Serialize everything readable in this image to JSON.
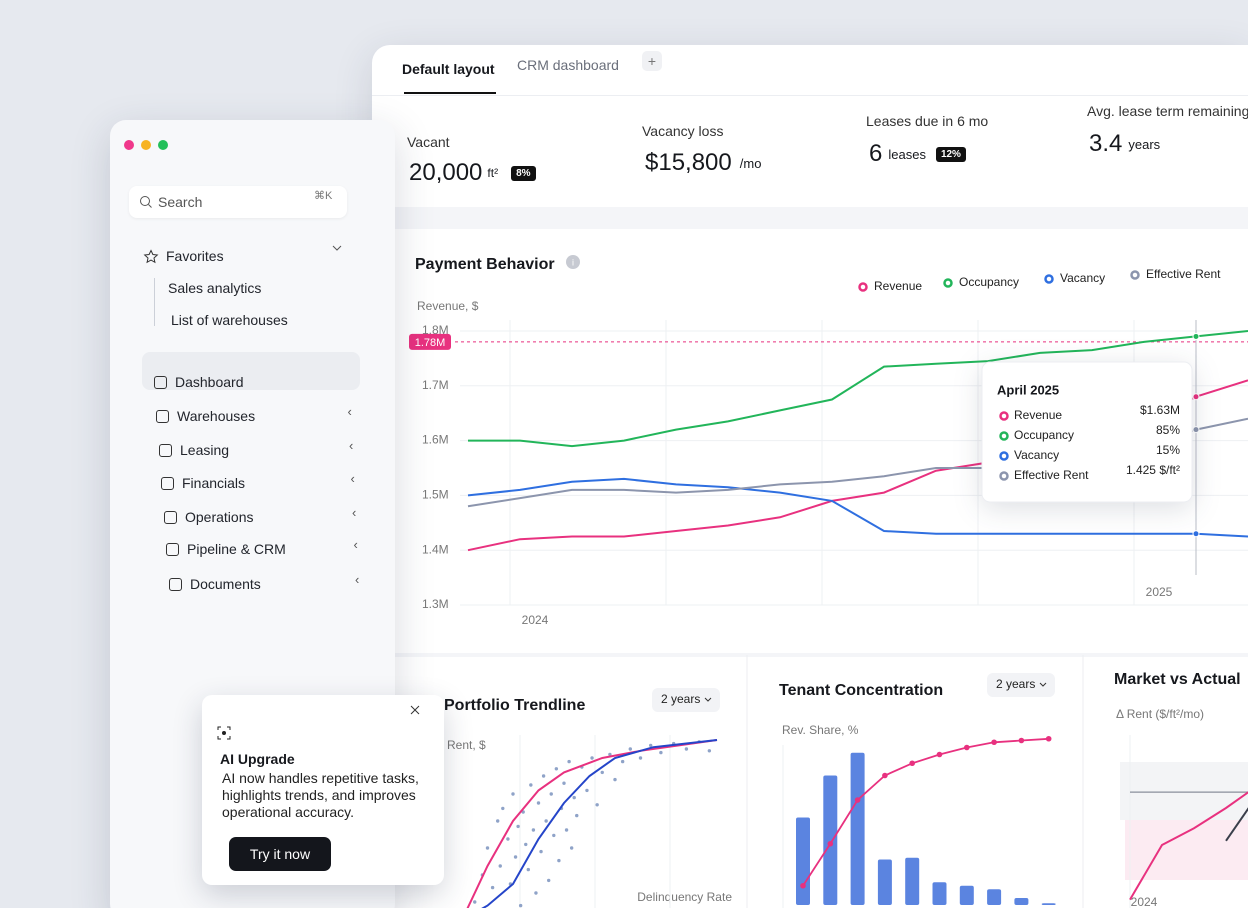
{
  "sidebar": {
    "search": "Search",
    "shortcut": "⌘K",
    "favorites": {
      "title": "Favorites",
      "items": [
        "Sales analytics",
        "List of warehouses"
      ]
    },
    "nav": [
      "Dashboard",
      "Warehouses",
      "Leasing",
      "Financials",
      "Operations",
      "Pipeline & CRM",
      "Documents"
    ]
  },
  "ai_card": {
    "title": "AI Upgrade",
    "text": "AI now handles repetitive tasks, highlights trends, and improves operational accuracy.",
    "button": "Try it now"
  },
  "tabs": [
    "Default layout",
    "CRM dashboard",
    "+"
  ],
  "kpis": [
    {
      "label": "Vacant",
      "value": "20,000",
      "unit": "ft²",
      "badge": "8%"
    },
    {
      "label": "Vacancy loss",
      "value": "$15,800",
      "unit": "/mo"
    },
    {
      "label": "Leases due in 6 mo",
      "value": "6",
      "unit": "leases",
      "badge": "12%"
    },
    {
      "label": "Avg. lease term remaining",
      "value": "3.4",
      "unit": "years"
    }
  ],
  "chart_data": [
    {
      "type": "line",
      "title": "Payment Behavior",
      "y_label": "Revenue, $",
      "categories": [
        null,
        "2024",
        null,
        null,
        null,
        null,
        null,
        null,
        null,
        null,
        null,
        null,
        null,
        "2025",
        null,
        null
      ],
      "series": [
        {
          "name": "Revenue",
          "color": "#e8317f",
          "values": [
            1400000,
            1420000,
            1425000,
            1425000,
            1435000,
            1445000,
            1460000,
            1490000,
            1505000,
            1545000,
            1560000,
            1590000,
            1610000,
            1630000,
            1680000,
            1710000
          ]
        },
        {
          "name": "Occupancy",
          "color": "#22b55a",
          "values": [
            1600000,
            1600000,
            1590000,
            1600000,
            1620000,
            1635000,
            1655000,
            1675000,
            1735000,
            1740000,
            1745000,
            1760000,
            1765000,
            1780000,
            1790000,
            1800000
          ]
        },
        {
          "name": "Vacancy",
          "color": "#2f6fe0",
          "values": [
            1500000,
            1510000,
            1525000,
            1530000,
            1520000,
            1515000,
            1505000,
            1490000,
            1435000,
            1430000,
            1430000,
            1430000,
            1430000,
            1430000,
            1430000,
            1425000
          ]
        },
        {
          "name": "Effective Rent",
          "color": "#8c95ad",
          "values": [
            1480000,
            1495000,
            1510000,
            1510000,
            1505000,
            1510000,
            1520000,
            1525000,
            1535000,
            1550000,
            1550000,
            1560000,
            1575000,
            1590000,
            1620000,
            1640000
          ]
        }
      ],
      "ylim": [
        1300000,
        1820000
      ],
      "yticks": [
        {
          "value": 1300000,
          "label": "1.3M"
        },
        {
          "value": 1400000,
          "label": "1.4M"
        },
        {
          "value": 1500000,
          "label": "1.5M"
        },
        {
          "value": 1600000,
          "label": "1.6M"
        },
        {
          "value": 1700000,
          "label": "1.7M"
        },
        {
          "value": 1800000,
          "label": "1.8M"
        }
      ],
      "reference": {
        "value": 1780000,
        "label": "1.78M",
        "color": "#e8317f"
      },
      "grid": true,
      "legend": "top-right",
      "tooltip": {
        "title": "April 2025",
        "values": [
          "$1.63M",
          "85%",
          "15%",
          "1.425 $/ft²"
        ]
      }
    },
    {
      "type": "scatter",
      "title": "Portfolio Trendline",
      "range": "2 years",
      "y_label": "Rent, $",
      "x_label": "Delinquency Rate",
      "color": "#8fa3c8",
      "x": [
        5,
        8,
        10,
        12,
        14,
        15,
        16,
        18,
        19,
        20,
        21,
        22,
        23,
        24,
        25,
        26,
        27,
        28,
        29,
        30,
        31,
        32,
        33,
        34,
        35,
        36,
        37,
        38,
        39,
        40,
        41,
        42,
        43,
        44,
        45,
        47,
        49,
        51,
        53,
        55,
        58,
        60,
        63,
        66,
        70,
        74,
        78,
        83,
        88,
        93,
        97
      ],
      "values": [
        10,
        25,
        40,
        18,
        55,
        30,
        62,
        45,
        20,
        70,
        35,
        52,
        8,
        60,
        42,
        28,
        75,
        50,
        15,
        65,
        38,
        80,
        55,
        22,
        70,
        47,
        84,
        33,
        62,
        76,
        50,
        88,
        40,
        68,
        58,
        85,
        72,
        90,
        64,
        82,
        92,
        78,
        88,
        95,
        90,
        97,
        93,
        98,
        95,
        99,
        94
      ],
      "xlim": [
        0,
        100
      ],
      "ylim": [
        0,
        100
      ],
      "series": [
        {
          "color": "#e8317f",
          "x": [
            0,
            10,
            20,
            30,
            40,
            55,
            70,
            85,
            100
          ],
          "values": [
            0,
            30,
            55,
            72,
            82,
            90,
            94,
            97,
            100
          ]
        },
        {
          "color": "#2545c9",
          "x": [
            0,
            10,
            20,
            30,
            40,
            50,
            60,
            75,
            100
          ],
          "values": [
            0,
            8,
            20,
            45,
            65,
            80,
            90,
            96,
            100
          ]
        }
      ]
    },
    {
      "type": "bar",
      "title": "Tenant Concentration",
      "range": "2 years",
      "y_label": "Rev. Share, %",
      "categories": [
        null,
        null,
        null,
        null,
        null,
        null,
        null,
        null,
        null,
        null
      ],
      "values": [
        50,
        74,
        87,
        26,
        27,
        13,
        11,
        9,
        4,
        1
      ],
      "color": "#5b84e0",
      "line": {
        "color": "#e8317f",
        "values": [
          11,
          35,
          60,
          74,
          81,
          86,
          90,
          93,
          94,
          95
        ]
      },
      "ylim": [
        0,
        100
      ]
    },
    {
      "type": "line",
      "title": "Market vs Actual",
      "y_label": "Δ Rent ($/ft²/mo)",
      "categories": [
        "2024",
        null,
        null,
        null,
        null
      ],
      "series": [
        {
          "color": "#8a8f9c",
          "values": [
            0.38,
            0.38,
            0.38,
            0.38,
            0.38
          ]
        },
        {
          "color": "#e8317f",
          "values": [
            -0.9,
            -0.25,
            -0.05,
            0.19,
            0.46
          ]
        },
        {
          "color": "#3a3f4b",
          "values": [
            null,
            null,
            null,
            -0.2,
            0.35
          ]
        }
      ],
      "ylim": [
        -1,
        1
      ]
    }
  ]
}
